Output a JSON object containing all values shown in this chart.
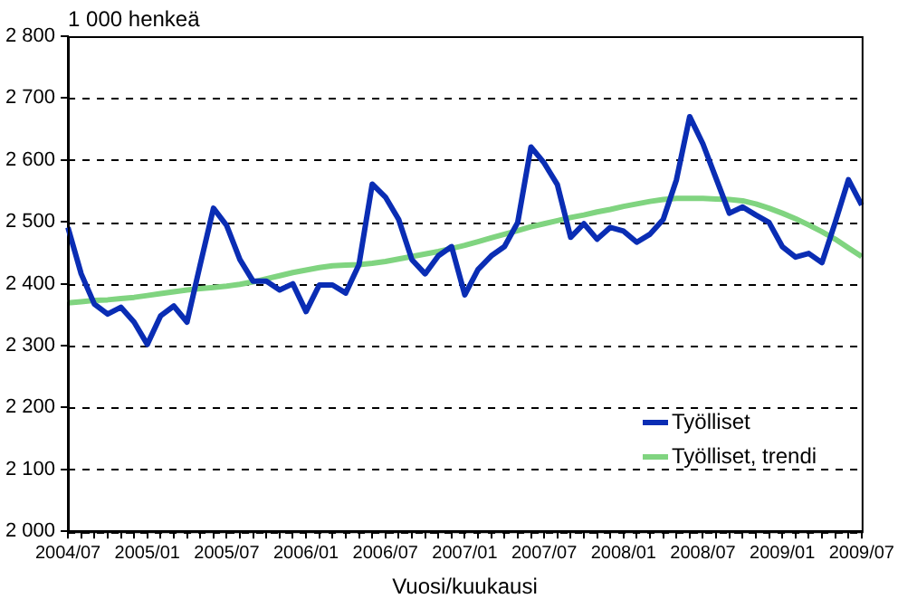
{
  "chart_data": {
    "type": "line",
    "ylabel": "1 000 henkeä",
    "xlabel": "Vuosi/kuukausi",
    "categories": [
      "2004/07",
      null,
      null,
      null,
      null,
      null,
      "2005/01",
      null,
      null,
      null,
      null,
      null,
      "2005/07",
      null,
      null,
      null,
      null,
      null,
      "2006/01",
      null,
      null,
      null,
      null,
      null,
      "2006/07",
      null,
      null,
      null,
      null,
      null,
      "2007/01",
      null,
      null,
      null,
      null,
      null,
      "2007/07",
      null,
      null,
      null,
      null,
      null,
      "2008/01",
      null,
      null,
      null,
      null,
      null,
      "2008/07",
      null,
      null,
      null,
      null,
      null,
      "2009/01",
      null,
      null,
      null,
      null,
      null,
      "2009/07"
    ],
    "series": [
      {
        "name": "Työlliset",
        "color": "#0a2db4",
        "values": [
          2491,
          2416,
          2367,
          2351,
          2362,
          2338,
          2302,
          2348,
          2364,
          2338,
          2431,
          2522,
          2494,
          2439,
          2404,
          2404,
          2390,
          2400,
          2355,
          2398,
          2398,
          2385,
          2431,
          2561,
          2540,
          2504,
          2439,
          2416,
          2445,
          2460,
          2382,
          2423,
          2445,
          2460,
          2499,
          2621,
          2595,
          2560,
          2475,
          2497,
          2472,
          2491,
          2485,
          2467,
          2480,
          2504,
          2568,
          2670,
          2626,
          2570,
          2514,
          2524,
          2511,
          2499,
          2460,
          2443,
          2449,
          2434,
          2499,
          2568,
          2527
        ]
      },
      {
        "name": "Työlliset, trendi",
        "color": "#80d480",
        "values": [
          2369,
          2371,
          2373,
          2374,
          2376,
          2378,
          2381,
          2384,
          2387,
          2390,
          2392,
          2394,
          2396,
          2399,
          2403,
          2408,
          2413,
          2418,
          2422,
          2426,
          2429,
          2430,
          2431,
          2433,
          2436,
          2440,
          2444,
          2448,
          2452,
          2457,
          2462,
          2468,
          2474,
          2480,
          2486,
          2492,
          2497,
          2502,
          2507,
          2511,
          2516,
          2520,
          2525,
          2529,
          2533,
          2536,
          2538,
          2538,
          2538,
          2537,
          2536,
          2534,
          2529,
          2522,
          2514,
          2505,
          2495,
          2484,
          2472,
          2458,
          2444
        ]
      }
    ],
    "ylim": [
      2000,
      2800
    ],
    "yticks": [
      {
        "value": 2000,
        "label": "2 000"
      },
      {
        "value": 2100,
        "label": "2 100"
      },
      {
        "value": 2200,
        "label": "2 200"
      },
      {
        "value": 2300,
        "label": "2 300"
      },
      {
        "value": 2400,
        "label": "2 400"
      },
      {
        "value": 2500,
        "label": "2 500"
      },
      {
        "value": 2600,
        "label": "2 600"
      },
      {
        "value": 2700,
        "label": "2 700"
      },
      {
        "value": 2800,
        "label": "2 800"
      }
    ],
    "grid": "y",
    "legend": "bottom right",
    "marker": "none",
    "line_style": "solid"
  }
}
